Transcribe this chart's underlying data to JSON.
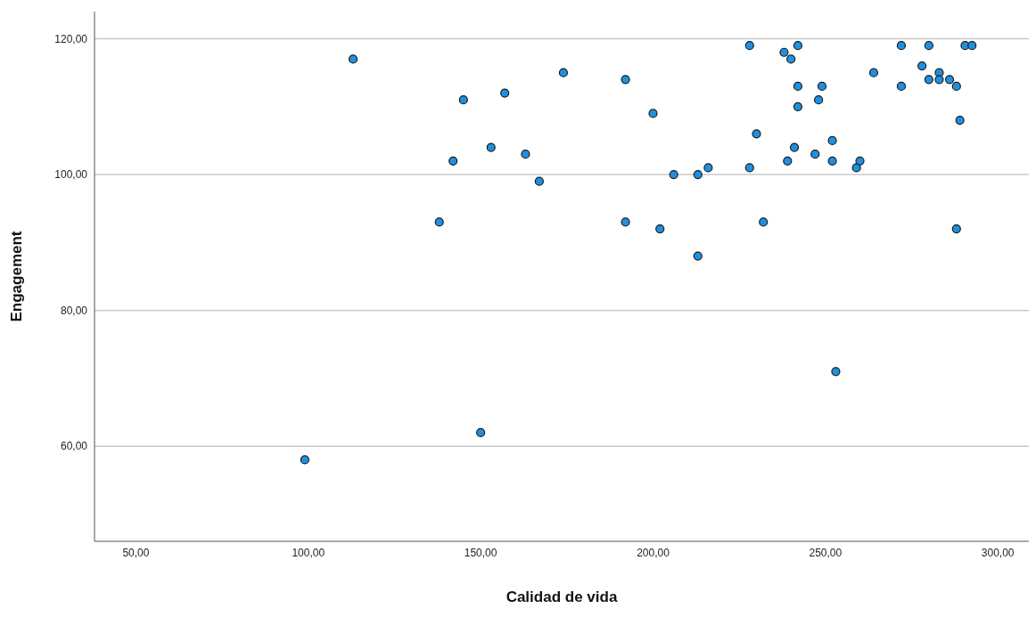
{
  "chart_data": {
    "type": "scatter",
    "xlabel": "Calidad de vida",
    "ylabel": "Engagement",
    "x": [
      99,
      113,
      138,
      142,
      145,
      150,
      153,
      157,
      163,
      167,
      174,
      192,
      192,
      200,
      202,
      206,
      213,
      213,
      216,
      228,
      228,
      230,
      232,
      238,
      239,
      240,
      241,
      242,
      242,
      242,
      247,
      248,
      249,
      252,
      252,
      253,
      259,
      260,
      264,
      272,
      272,
      278,
      280,
      280,
      283,
      283,
      286,
      288,
      288,
      289,
      290.5,
      292.5
    ],
    "series": [
      {
        "color": "#1f90e0",
        "values": [
          58,
          117,
          93,
          102,
          111,
          62,
          104,
          112,
          103,
          99,
          115,
          93,
          114,
          109,
          92,
          100,
          100,
          88,
          101,
          119,
          101,
          106,
          93,
          118,
          102,
          117,
          104,
          119,
          113,
          110,
          103,
          111,
          113,
          105,
          102,
          71,
          101,
          102,
          115,
          119,
          113,
          116,
          119,
          114,
          115,
          114,
          114,
          113,
          92,
          108,
          119,
          119
        ]
      }
    ],
    "xlim": [
      38,
      309
    ],
    "ylim": [
      46,
      124
    ],
    "xticks": [
      {
        "value": 50,
        "label": "50,00"
      },
      {
        "value": 100,
        "label": "100,00"
      },
      {
        "value": 150,
        "label": "150,00"
      },
      {
        "value": 200,
        "label": "200,00"
      },
      {
        "value": 250,
        "label": "250,00"
      },
      {
        "value": 300,
        "label": "300,00"
      }
    ],
    "yticks": [
      {
        "value": 60,
        "label": "60,00"
      },
      {
        "value": 80,
        "label": "80,00"
      },
      {
        "value": 100,
        "label": "100,00"
      },
      {
        "value": 120,
        "label": "120,00"
      }
    ],
    "grid": "y",
    "marker": "circle",
    "legend": false
  }
}
